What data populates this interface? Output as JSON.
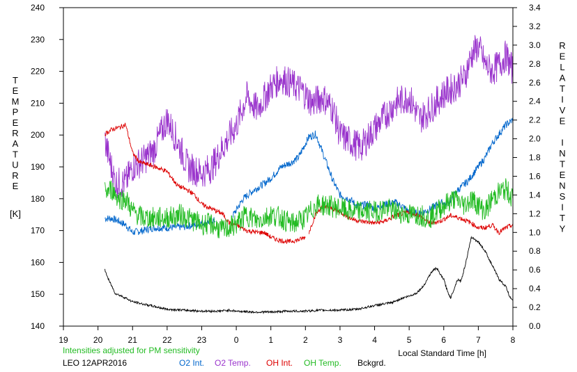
{
  "chart_data": {
    "type": "line",
    "xlabel": "Local Standard Time [h]",
    "ylabel_left_letters": [
      "T",
      "E",
      "M",
      "P",
      "E",
      "R",
      "A",
      "T",
      "U",
      "R",
      "E"
    ],
    "ylabel_left_unit": "[K]",
    "ylabel_right_letters": [
      "R",
      "E",
      "L",
      "A",
      "T",
      "I",
      "V",
      "E",
      "",
      "I",
      "N",
      "T",
      "E",
      "N",
      "S",
      "I",
      "T",
      "Y"
    ],
    "note": "Intensities adjusted for PM sensitivity",
    "station": "LEO 12APR2016",
    "xlim": [
      19,
      32
    ],
    "x_tick_values": [
      19,
      20,
      21,
      22,
      23,
      24,
      25,
      26,
      27,
      28,
      29,
      30,
      31,
      32
    ],
    "x_tick_labels": [
      "19",
      "20",
      "21",
      "22",
      "23",
      "0",
      "1",
      "2",
      "3",
      "4",
      "5",
      "6",
      "7",
      "8"
    ],
    "ylim_left": [
      140,
      240
    ],
    "y_ticks_left": [
      "140",
      "150",
      "160",
      "170",
      "180",
      "190",
      "200",
      "210",
      "220",
      "230",
      "240"
    ],
    "ylim_right": [
      0.0,
      3.4
    ],
    "y_ticks_right": [
      "0.0",
      "0.2",
      "0.4",
      "0.6",
      "0.8",
      "1.0",
      "1.2",
      "1.4",
      "1.6",
      "1.8",
      "2.0",
      "2.2",
      "2.4",
      "2.6",
      "2.8",
      "3.0",
      "3.2",
      "3.4"
    ],
    "grid": false,
    "legend_placement": "bottom",
    "series": [
      {
        "name": "O2 Int.",
        "axis": "right",
        "color": "#0066cc",
        "noise": 0.04,
        "gap": [
          23.4,
          23.9
        ],
        "x": [
          20.2,
          20.4,
          20.6,
          20.8,
          21.0,
          21.3,
          21.6,
          22.0,
          22.5,
          23.0,
          23.3,
          23.9,
          24.2,
          24.5,
          24.8,
          25.0,
          25.3,
          25.6,
          25.8,
          26.0,
          26.1,
          26.3,
          26.5,
          26.8,
          27.0,
          27.3,
          27.5,
          27.8,
          28.0,
          28.3,
          28.6,
          28.8,
          29.0,
          29.3,
          29.6,
          29.9,
          30.1,
          30.4,
          30.7,
          31.0,
          31.2,
          31.4,
          31.6,
          31.8,
          32.0
        ],
        "y": [
          1.15,
          1.15,
          1.12,
          1.08,
          1.0,
          1.02,
          1.05,
          1.05,
          1.06,
          1.1,
          1.12,
          1.18,
          1.36,
          1.45,
          1.52,
          1.58,
          1.7,
          1.75,
          1.8,
          1.95,
          2.02,
          2.05,
          1.85,
          1.55,
          1.4,
          1.35,
          1.28,
          1.3,
          1.25,
          1.3,
          1.32,
          1.28,
          1.22,
          1.2,
          1.25,
          1.32,
          1.3,
          1.45,
          1.55,
          1.7,
          1.8,
          1.95,
          2.05,
          2.15,
          2.2
        ]
      },
      {
        "name": "O2 Temp.",
        "axis": "left",
        "color": "#9933cc",
        "noise": 5,
        "x": [
          20.2,
          20.5,
          20.8,
          21.0,
          21.3,
          21.6,
          22.0,
          22.3,
          22.6,
          23.0,
          23.3,
          23.6,
          24.0,
          24.3,
          24.6,
          25.0,
          25.3,
          25.6,
          25.9,
          26.2,
          26.5,
          26.8,
          27.0,
          27.3,
          27.6,
          28.0,
          28.3,
          28.6,
          29.0,
          29.3,
          29.6,
          30.0,
          30.3,
          30.6,
          30.8,
          31.0,
          31.2,
          31.4,
          31.6,
          31.8,
          32.0
        ],
        "y": [
          198,
          185,
          185,
          190,
          192,
          195,
          205,
          198,
          190,
          188,
          190,
          196,
          203,
          212,
          208,
          215,
          218,
          216,
          214,
          210,
          212,
          208,
          200,
          198,
          196,
          202,
          206,
          210,
          212,
          205,
          208,
          213,
          215,
          218,
          225,
          228,
          222,
          220,
          222,
          225,
          220
        ]
      },
      {
        "name": "OH Int.",
        "axis": "right",
        "color": "#dd0000",
        "noise": 0.025,
        "gap": [
          26.0,
          26.1
        ],
        "x": [
          20.2,
          20.4,
          20.6,
          20.8,
          21.0,
          21.2,
          21.5,
          21.8,
          22.0,
          22.3,
          22.6,
          22.8,
          23.0,
          23.3,
          23.6,
          23.8,
          24.0,
          24.3,
          24.6,
          24.8,
          25.0,
          25.2,
          25.5,
          25.8,
          26.0,
          26.1,
          26.3,
          26.5,
          26.8,
          27.0,
          27.3,
          27.6,
          28.0,
          28.3,
          28.6,
          28.8,
          29.0,
          29.3,
          29.6,
          29.9,
          30.2,
          30.5,
          30.8,
          31.0,
          31.2,
          31.4,
          31.6,
          31.8,
          32.0
        ],
        "y": [
          2.05,
          2.1,
          2.12,
          2.15,
          1.85,
          1.75,
          1.72,
          1.68,
          1.65,
          1.5,
          1.45,
          1.4,
          1.3,
          1.25,
          1.2,
          1.1,
          1.08,
          1.02,
          1.0,
          1.0,
          0.95,
          0.92,
          0.9,
          0.92,
          0.95,
          1.0,
          1.2,
          1.28,
          1.25,
          1.22,
          1.15,
          1.12,
          1.1,
          1.12,
          1.18,
          1.2,
          1.22,
          1.18,
          1.1,
          1.12,
          1.18,
          1.15,
          1.1,
          1.05,
          1.05,
          1.08,
          1.0,
          1.05,
          1.08
        ]
      },
      {
        "name": "OH Temp.",
        "axis": "left",
        "color": "#22bb22",
        "noise": 3.5,
        "x": [
          20.2,
          20.4,
          20.6,
          20.8,
          21.0,
          21.3,
          21.6,
          22.0,
          22.4,
          22.8,
          23.0,
          23.3,
          23.6,
          24.0,
          24.3,
          24.6,
          25.0,
          25.3,
          25.6,
          26.0,
          26.3,
          26.6,
          27.0,
          27.3,
          27.6,
          28.0,
          28.3,
          28.6,
          29.0,
          29.3,
          29.6,
          30.0,
          30.3,
          30.6,
          30.8,
          31.0,
          31.2,
          31.4,
          31.6,
          31.8,
          32.0
        ],
        "y": [
          182,
          183,
          180,
          180,
          176,
          174,
          174,
          174,
          175,
          173,
          172,
          172,
          170,
          172,
          175,
          173,
          175,
          174,
          172,
          174,
          178,
          178,
          177,
          176,
          176,
          176,
          177,
          176,
          175,
          175,
          174,
          178,
          180,
          178,
          180,
          178,
          176,
          180,
          182,
          183,
          180
        ]
      },
      {
        "name": "Bckgrd.",
        "axis": "right",
        "color": "#000000",
        "noise": 0.012,
        "x": [
          20.2,
          20.3,
          20.5,
          20.8,
          21.0,
          21.5,
          22.0,
          22.5,
          23.0,
          23.5,
          23.8,
          24.0,
          24.5,
          25.0,
          25.5,
          26.0,
          26.5,
          27.0,
          27.5,
          28.0,
          28.5,
          28.8,
          29.0,
          29.2,
          29.4,
          29.6,
          29.7,
          29.8,
          29.9,
          30.0,
          30.1,
          30.2,
          30.3,
          30.4,
          30.5,
          30.6,
          30.7,
          30.8,
          31.0,
          31.2,
          31.4,
          31.6,
          31.8,
          31.9,
          32.0
        ],
        "y": [
          0.6,
          0.5,
          0.35,
          0.3,
          0.26,
          0.22,
          0.18,
          0.17,
          0.16,
          0.16,
          0.17,
          0.16,
          0.15,
          0.15,
          0.16,
          0.16,
          0.17,
          0.17,
          0.18,
          0.22,
          0.25,
          0.3,
          0.32,
          0.35,
          0.42,
          0.55,
          0.6,
          0.62,
          0.55,
          0.5,
          0.38,
          0.3,
          0.4,
          0.5,
          0.48,
          0.62,
          0.78,
          0.95,
          0.9,
          0.8,
          0.65,
          0.5,
          0.42,
          0.32,
          0.28
        ]
      }
    ],
    "legend": [
      {
        "label": "O2 Int.",
        "color": "#0066cc"
      },
      {
        "label": "O2 Temp.",
        "color": "#9933cc"
      },
      {
        "label": "OH Int.",
        "color": "#dd0000"
      },
      {
        "label": "OH Temp.",
        "color": "#22bb22"
      },
      {
        "label": "Bckgrd.",
        "color": "#000000"
      }
    ],
    "colors": {
      "note": "#22bb22",
      "text": "#000000"
    }
  }
}
